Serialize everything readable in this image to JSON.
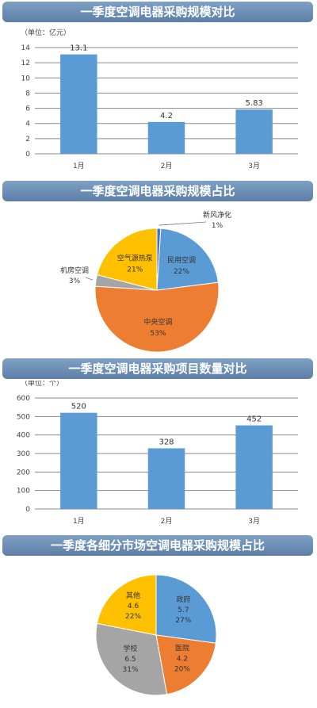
{
  "colors": {
    "bar": "#5b9bd5",
    "blue": "#5b9bd5",
    "orange": "#ed7d31",
    "gray": "#a5a5a5",
    "yellow": "#ffc000",
    "navy": "#4472c4",
    "banner": "#6a8db5"
  },
  "chart_data": [
    {
      "type": "bar",
      "title": "一季度空调电器采购规模对比",
      "unit_label": "（单位：亿元）",
      "categories": [
        "1月",
        "2月",
        "3月"
      ],
      "values": [
        13.1,
        4.2,
        5.83
      ],
      "value_labels": [
        "13.1",
        "4.2",
        "5.83"
      ],
      "ylim": [
        0,
        14
      ],
      "yticks": [
        0,
        2,
        4,
        6,
        8,
        10,
        12,
        14
      ],
      "grid": true
    },
    {
      "type": "pie",
      "title": "一季度空调电器采购规模占比",
      "slices": [
        {
          "label": "新风净化",
          "value": 1,
          "pct": "1%",
          "color": "#4472c4"
        },
        {
          "label": "民用空调",
          "value": 22,
          "pct": "22%",
          "color": "#5b9bd5"
        },
        {
          "label": "中央空调",
          "value": 53,
          "pct": "53%",
          "color": "#ed7d31"
        },
        {
          "label": "机房空调",
          "value": 3,
          "pct": "3%",
          "color": "#a5a5a5"
        },
        {
          "label": "空气源热泵",
          "value": 21,
          "pct": "21%",
          "color": "#ffc000"
        }
      ]
    },
    {
      "type": "bar",
      "title": "一季度空调电器采购项目数量对比",
      "unit_label": "（单位：个）",
      "categories": [
        "1月",
        "2月",
        "3月"
      ],
      "values": [
        520,
        328,
        452
      ],
      "value_labels": [
        "520",
        "328",
        "452"
      ],
      "ylim": [
        0,
        600
      ],
      "yticks": [
        0,
        100,
        200,
        300,
        400,
        500,
        600
      ],
      "grid": true
    },
    {
      "type": "pie",
      "title": "一季度各细分市场空调电器采购规模占比",
      "slices": [
        {
          "label": "政府",
          "value": 5.7,
          "display_value": "5.7",
          "pct": "27%",
          "color": "#5b9bd5"
        },
        {
          "label": "医院",
          "value": 4.2,
          "display_value": "4.2",
          "pct": "20%",
          "color": "#ed7d31"
        },
        {
          "label": "学校",
          "value": 6.5,
          "display_value": "6.5",
          "pct": "31%",
          "color": "#a5a5a5"
        },
        {
          "label": "其他",
          "value": 4.6,
          "display_value": "4.6",
          "pct": "22%",
          "color": "#ffc000"
        }
      ]
    }
  ]
}
